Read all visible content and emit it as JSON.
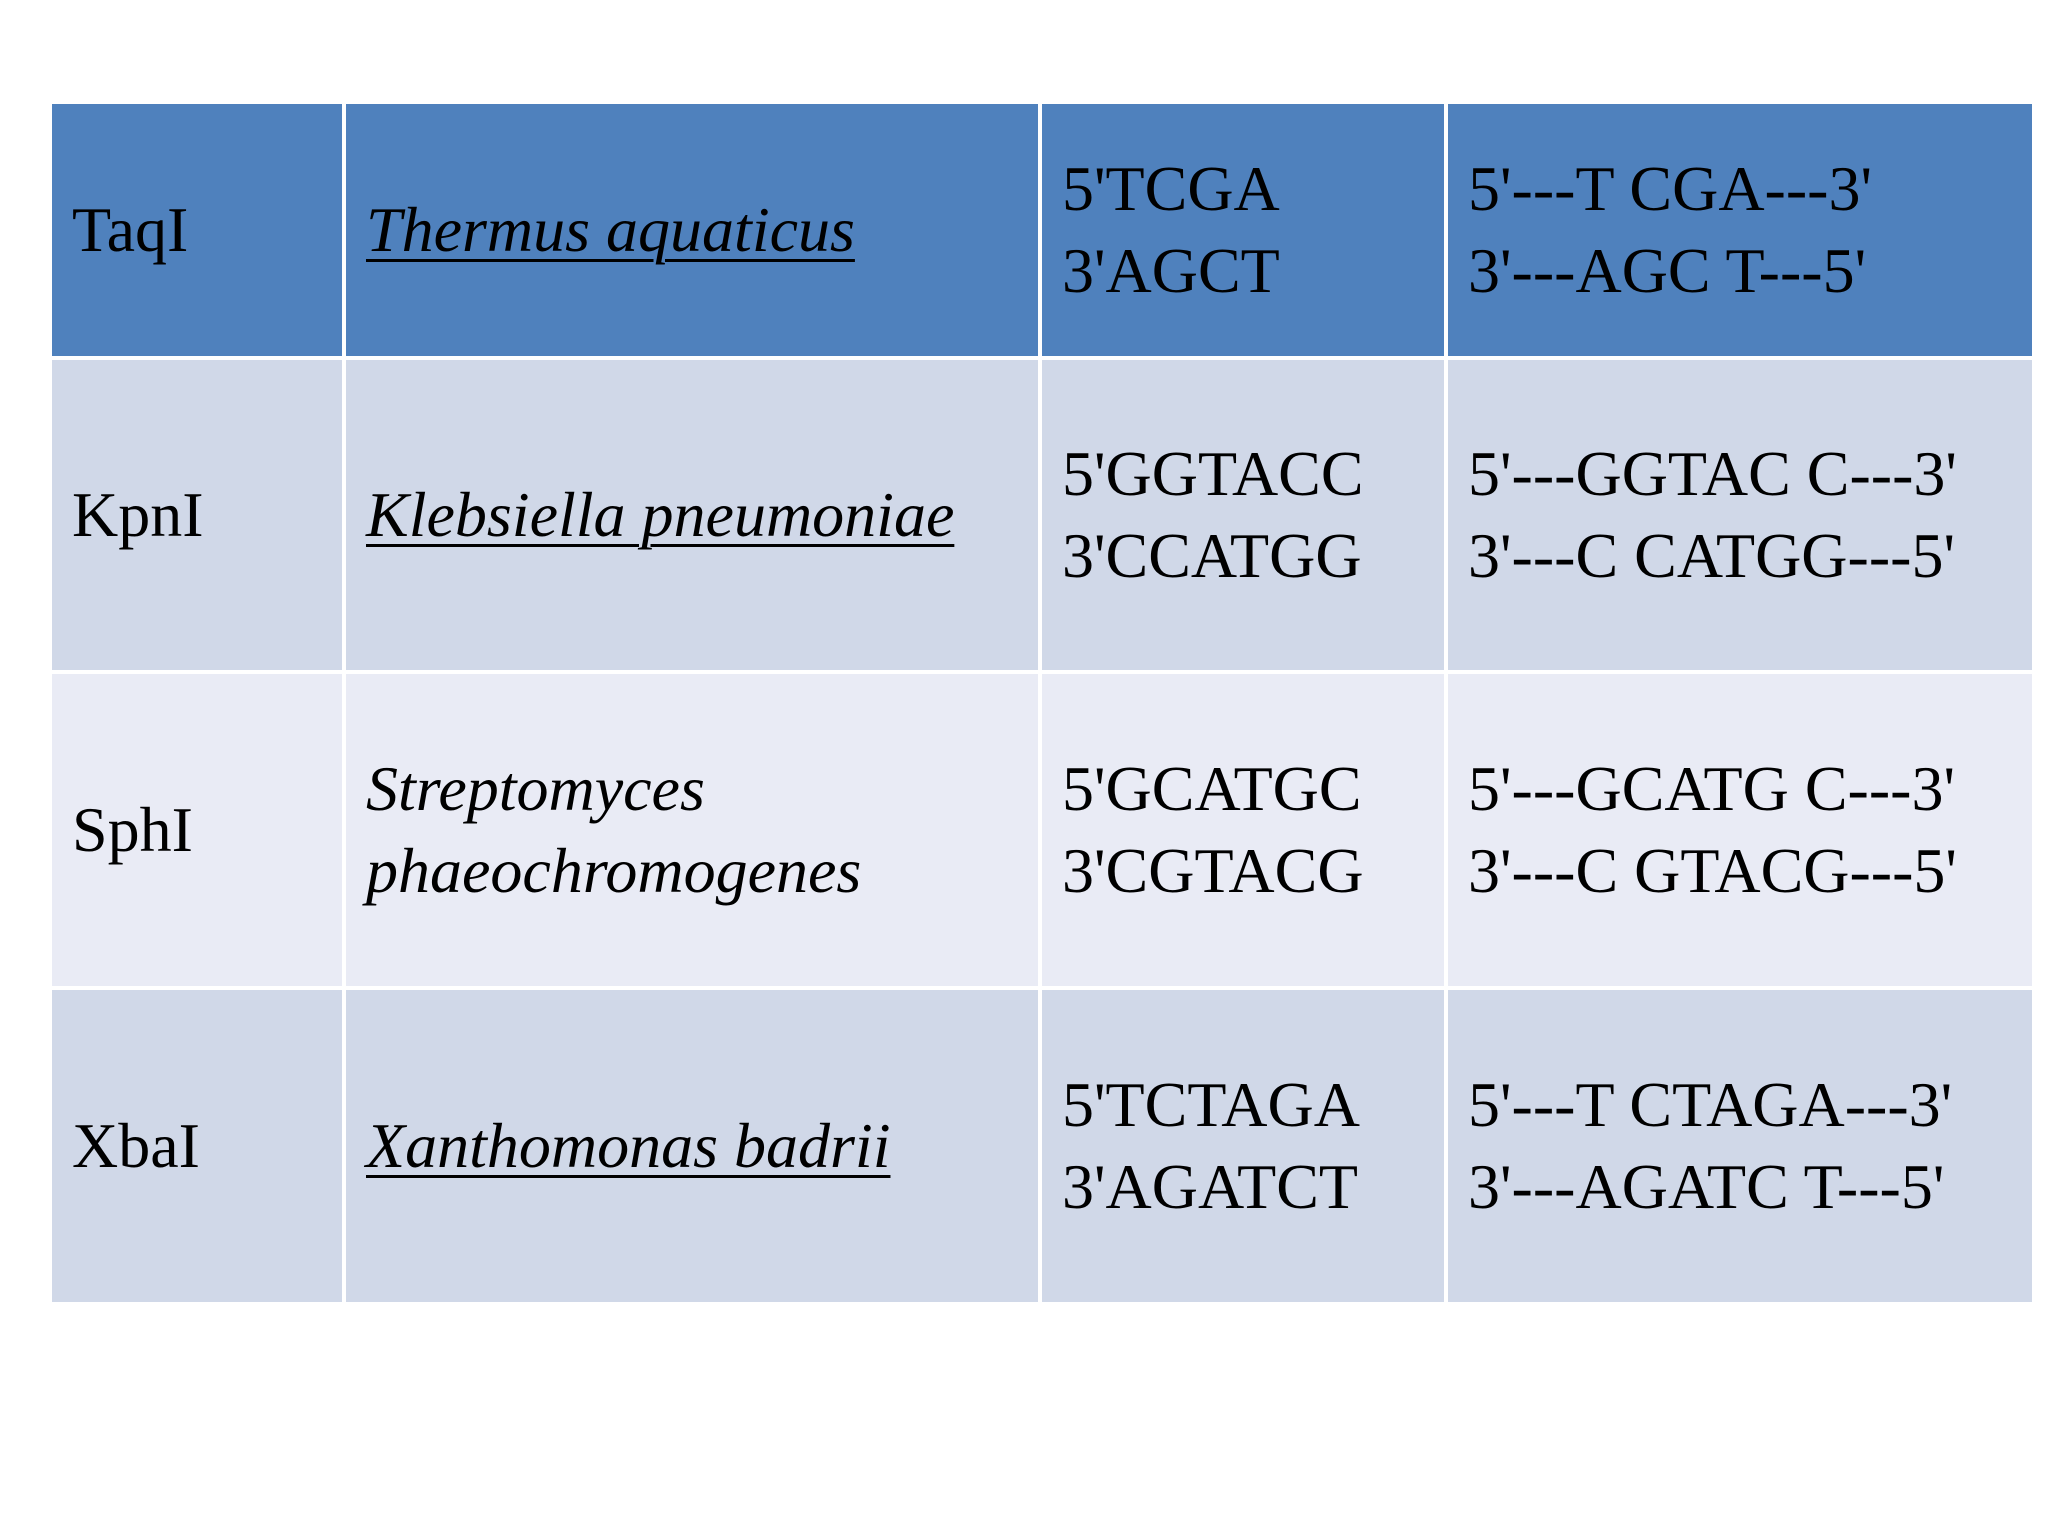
{
  "rows": [
    {
      "enzyme": "TaqI",
      "organism": "Thermus aquaticus",
      "organism_lines": [
        "Thermus aquaticus"
      ],
      "site_top": "5'TCGA",
      "site_bottom": "3'AGCT",
      "cut_top": "5'---T CGA---3'",
      "cut_bottom": "3'---AGC T---5'"
    },
    {
      "enzyme": "KpnI",
      "organism": "Klebsiella pneumoniae",
      "organism_lines": [
        "Klebsiella pneumoniae"
      ],
      "site_top": "5'GGTACC",
      "site_bottom": "3'CCATGG",
      "cut_top": "5'---GGTAC C---3'",
      "cut_bottom": "3'---C CATGG---5'"
    },
    {
      "enzyme": "SphI",
      "organism": "Streptomyces phaeochromogenes",
      "organism_lines": [
        "Streptomyces",
        "phaeochromogenes"
      ],
      "site_top": "5'GCATGC",
      "site_bottom": "3'CGTACG",
      "cut_top": "5'---GCATG C---3'",
      "cut_bottom": "3'---C GTACG---5'"
    },
    {
      "enzyme": "XbaI",
      "organism": "Xanthomonas badrii",
      "organism_lines": [
        "Xanthomonas badrii"
      ],
      "site_top": "5'TCTAGA",
      "site_bottom": "3'AGATCT",
      "cut_top": "5'---T CTAGA---3'",
      "cut_bottom": "3'---AGATC T---5'"
    }
  ],
  "colors": {
    "header_row": "#4f81bd",
    "band_dark": "#d0d8e8",
    "band_light": "#e9ebf5",
    "background": "#ffffff"
  }
}
